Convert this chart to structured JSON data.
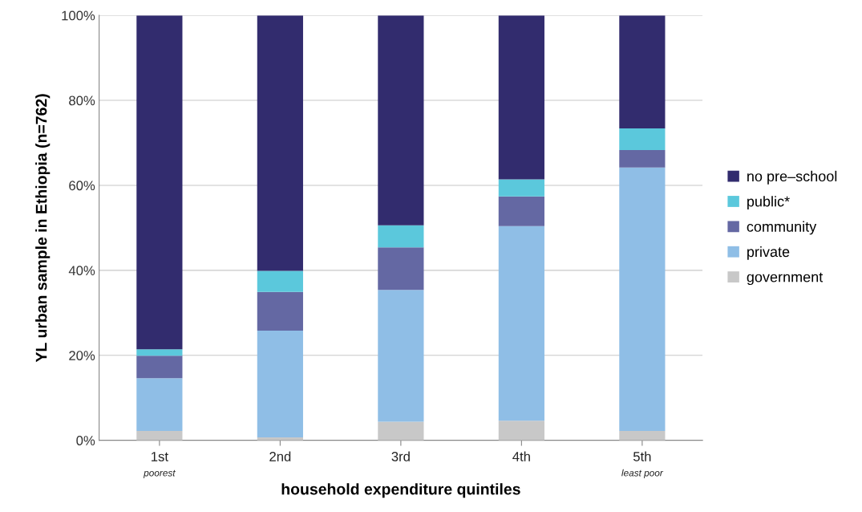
{
  "chart_data": {
    "type": "bar",
    "stacked": true,
    "xlabel": "household expenditure quintiles",
    "ylabel": "YL urban sample in Ethiopia (n=762)",
    "categories": [
      "1st\npoorest",
      "2nd",
      "3rd",
      "4th",
      "5th\nleast poor"
    ],
    "series": [
      {
        "name": "government",
        "color": "#c8c8c8",
        "values": [
          2.2,
          0.7,
          4.4,
          4.6,
          2.2
        ]
      },
      {
        "name": "private",
        "color": "#8fbee6",
        "values": [
          12.4,
          25.1,
          31.0,
          45.8,
          62.0
        ]
      },
      {
        "name": "community",
        "color": "#6468a3",
        "values": [
          5.3,
          9.1,
          10.0,
          7.0,
          4.1
        ]
      },
      {
        "name": "public*",
        "color": "#5bc8dc",
        "values": [
          1.5,
          5.0,
          5.2,
          4.0,
          5.1
        ]
      },
      {
        "name": "no pre–school",
        "color": "#322c6e",
        "values": [
          78.6,
          60.1,
          49.4,
          38.6,
          26.6
        ]
      }
    ],
    "ylim": [
      0,
      100
    ],
    "yticks": [
      {
        "value": 0,
        "label": "0%"
      },
      {
        "value": 20,
        "label": "20%"
      },
      {
        "value": 40,
        "label": "40%"
      },
      {
        "value": 60,
        "label": "60%"
      },
      {
        "value": 80,
        "label": "80%"
      },
      {
        "value": 100,
        "label": "100%"
      }
    ],
    "grid": "y",
    "legend": "right"
  }
}
